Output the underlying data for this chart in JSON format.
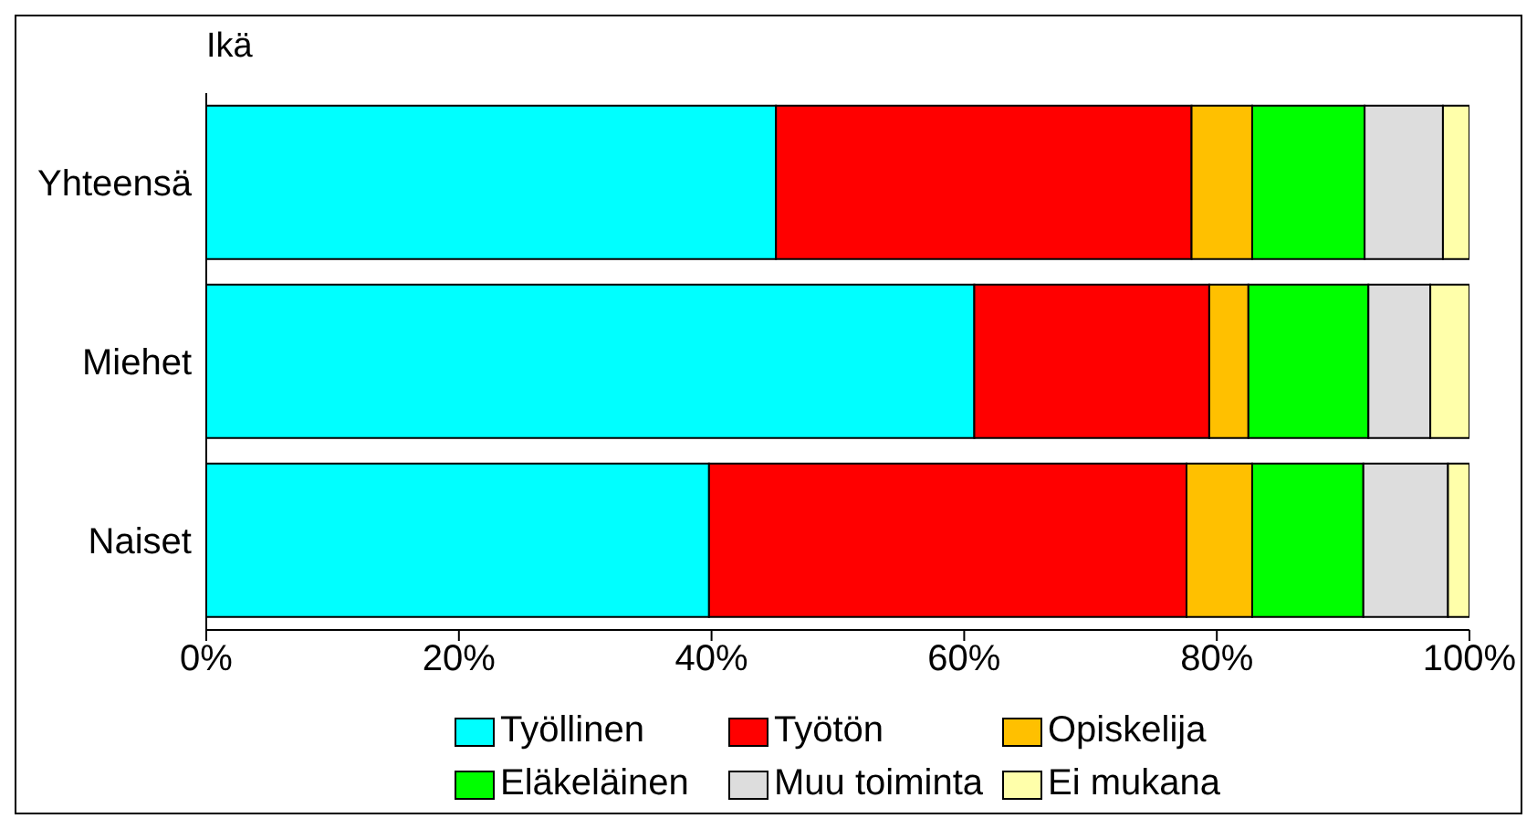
{
  "chart_data": {
    "type": "bar",
    "orientation": "horizontal",
    "stacked": true,
    "title": "Ikä",
    "categories": [
      "Yhteensä",
      "Miehet",
      "Naiset"
    ],
    "series": [
      {
        "name": "Työllinen",
        "color": "#00ffff",
        "values": [
          45.1,
          60.8,
          39.8
        ]
      },
      {
        "name": "Työtön",
        "color": "#ff0000",
        "values": [
          32.9,
          18.6,
          37.8
        ]
      },
      {
        "name": "Opiskelija",
        "color": "#ffc000",
        "values": [
          4.8,
          3.1,
          5.2
        ]
      },
      {
        "name": "Eläkeläinen",
        "color": "#00ff00",
        "values": [
          8.9,
          9.5,
          8.8
        ]
      },
      {
        "name": "Muu toiminta",
        "color": "#dddddd",
        "values": [
          6.2,
          4.9,
          6.7
        ]
      },
      {
        "name": "Ei mukana",
        "color": "#ffffaa",
        "values": [
          2.1,
          3.1,
          1.7
        ]
      }
    ],
    "xlim": [
      0,
      100
    ],
    "xticks": [
      {
        "value": 0,
        "label": "0%"
      },
      {
        "value": 20,
        "label": "20%"
      },
      {
        "value": 40,
        "label": "40%"
      },
      {
        "value": 60,
        "label": "60%"
      },
      {
        "value": 80,
        "label": "80%"
      },
      {
        "value": 100,
        "label": "100%"
      }
    ],
    "legend": "bottom"
  }
}
